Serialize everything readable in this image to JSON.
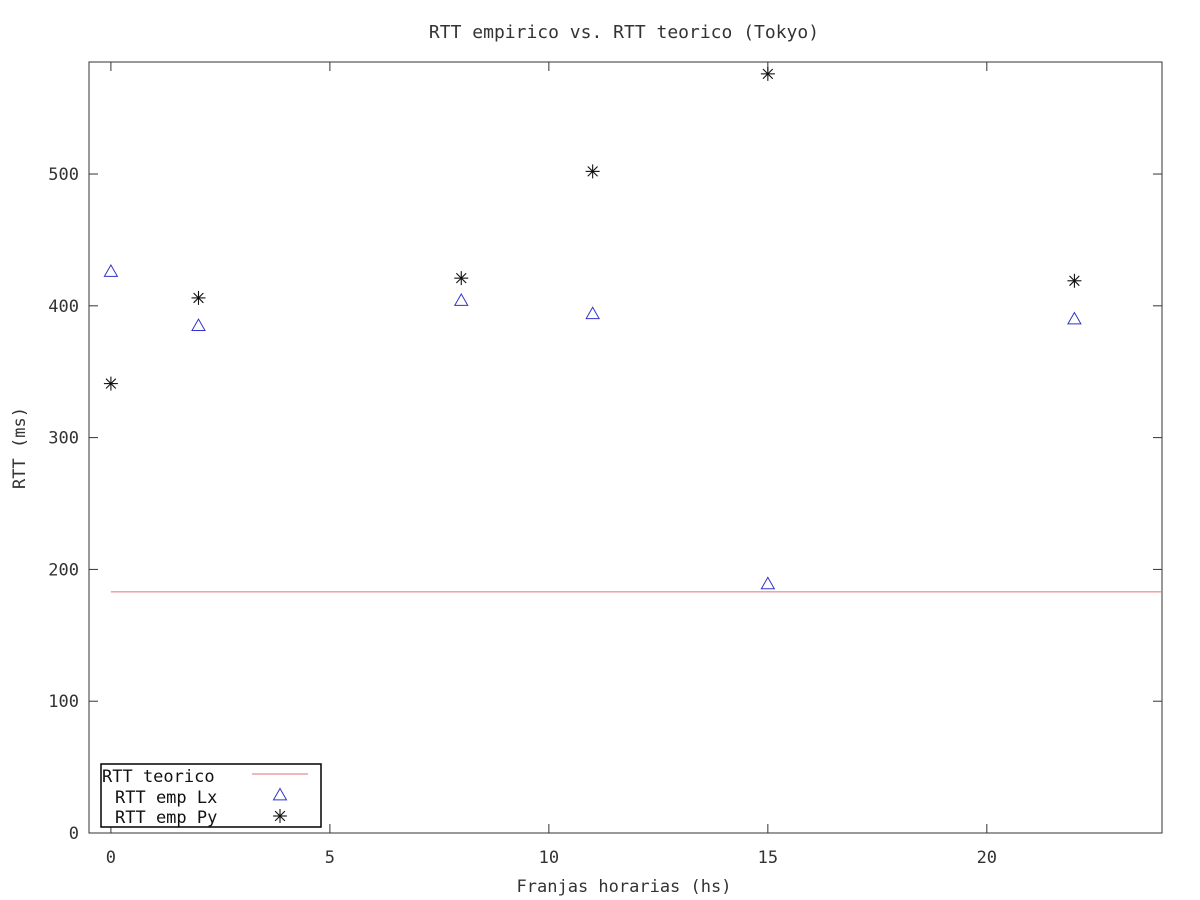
{
  "chart_data": {
    "type": "scatter",
    "title": "RTT empirico vs. RTT teorico (Tokyo)",
    "xlabel": "Franjas horarias (hs)",
    "ylabel": "RTT (ms)",
    "xlim": [
      -0.5,
      24
    ],
    "ylim": [
      0,
      585
    ],
    "xticks": [
      0,
      5,
      10,
      15,
      20
    ],
    "yticks": [
      0,
      100,
      200,
      300,
      400,
      500
    ],
    "grid": false,
    "legend_position": "bottom-left",
    "series": [
      {
        "name": "RTT teorico",
        "kind": "line",
        "color": "#e07070",
        "x": [
          0,
          24
        ],
        "y": [
          183,
          183
        ]
      },
      {
        "name": "RTT emp Lx",
        "kind": "triangle",
        "color": "#3333cc",
        "x": [
          0,
          2,
          8,
          11,
          15,
          22
        ],
        "y": [
          426,
          385,
          404,
          394,
          189,
          390
        ]
      },
      {
        "name": "RTT emp Py",
        "kind": "asterisk",
        "color": "#111111",
        "x": [
          0,
          2,
          8,
          11,
          15,
          22
        ],
        "y": [
          341,
          406,
          421,
          502,
          576,
          419
        ]
      }
    ]
  }
}
